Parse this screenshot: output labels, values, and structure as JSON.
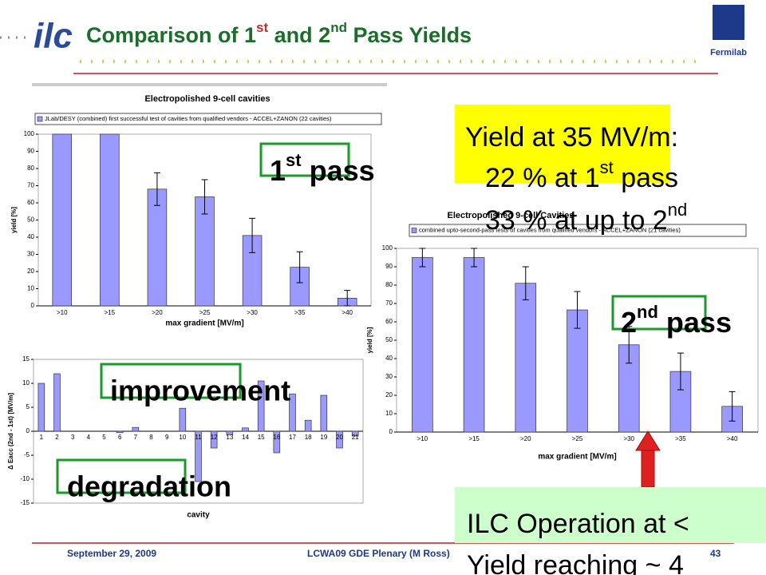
{
  "slide": {
    "logo": "ilc",
    "institution": "Fermilab",
    "title": [
      "Comparison of  1",
      "st",
      " and 2",
      "nd",
      " Pass Yields"
    ],
    "yield_box": [
      "Yield at 35 MV/m:",
      "22 % at 1",
      "st",
      " pass",
      "33 % at up to 2",
      "nd"
    ],
    "first_pass": [
      "1",
      "st",
      " pass"
    ],
    "second_pass": [
      "2",
      "nd",
      " pass"
    ],
    "improvement": "improvement",
    "degradation": "degradation",
    "ilc_box": [
      "ILC Operation at <",
      "Yield reaching ~ 4"
    ],
    "footer": {
      "date": "September 29, 2009",
      "event": "LCWA09 GDE Plenary (M Ross)",
      "page": "43"
    }
  },
  "chart_data": [
    {
      "type": "bar",
      "title": "Electropolished 9-cell cavities",
      "legend": "JLab/DESY (combined) first successful test of cavities from qualified vendors - ACCEL+ZANON (22 cavities)",
      "x_label": "max gradient [MV/m]",
      "y_label": "yield [%]",
      "categories": [
        ">10",
        ">15",
        ">20",
        ">25",
        ">30",
        ">35",
        ">40"
      ],
      "values": [
        100,
        100,
        68,
        63.5,
        41,
        22.5,
        4.5
      ],
      "errors": [
        null,
        null,
        9.5,
        10,
        10,
        9,
        4.5
      ],
      "color": "#9999ff",
      "ylim": [
        0,
        100
      ],
      "yticks": [
        0,
        10,
        20,
        30,
        40,
        50,
        60,
        70,
        80,
        90,
        100
      ]
    },
    {
      "type": "bar",
      "title": "Electropolished 9-cell Cavities",
      "legend": "combined upto-second-pass tests of cavities from qualified vendors - ACCEL+ZANON (21 cavities)",
      "x_label": "max gradient [MV/m]",
      "y_label": "yield [%]",
      "categories": [
        ">10",
        ">15",
        ">20",
        ">25",
        ">30",
        ">35",
        ">40"
      ],
      "values": [
        95,
        95,
        81,
        66.5,
        47.5,
        33,
        14
      ],
      "errors": [
        5,
        5,
        9,
        10,
        10,
        10,
        8
      ],
      "color": "#9999ff",
      "ylim": [
        0,
        100
      ],
      "yticks": [
        0,
        10,
        20,
        30,
        40,
        50,
        60,
        70,
        80,
        90,
        100
      ]
    },
    {
      "type": "bar",
      "x_label": "cavity",
      "y_label": "Δ Eacc (2nd - 1st) [MV/m]",
      "categories": [
        1,
        2,
        3,
        4,
        5,
        6,
        7,
        8,
        9,
        10,
        11,
        12,
        13,
        14,
        15,
        16,
        17,
        18,
        19,
        20,
        21
      ],
      "values": [
        10,
        12,
        0,
        0,
        0,
        -0.3,
        0.8,
        0,
        0,
        4.8,
        -10.5,
        -3.5,
        -0.7,
        0.7,
        10.5,
        -4.5,
        7.8,
        2.3,
        7.5,
        -3.5,
        -1
      ],
      "color": "#9999ff",
      "ylim": [
        -15,
        15
      ],
      "yticks": [
        -15,
        -10,
        -5,
        0,
        5,
        10,
        15
      ]
    }
  ]
}
